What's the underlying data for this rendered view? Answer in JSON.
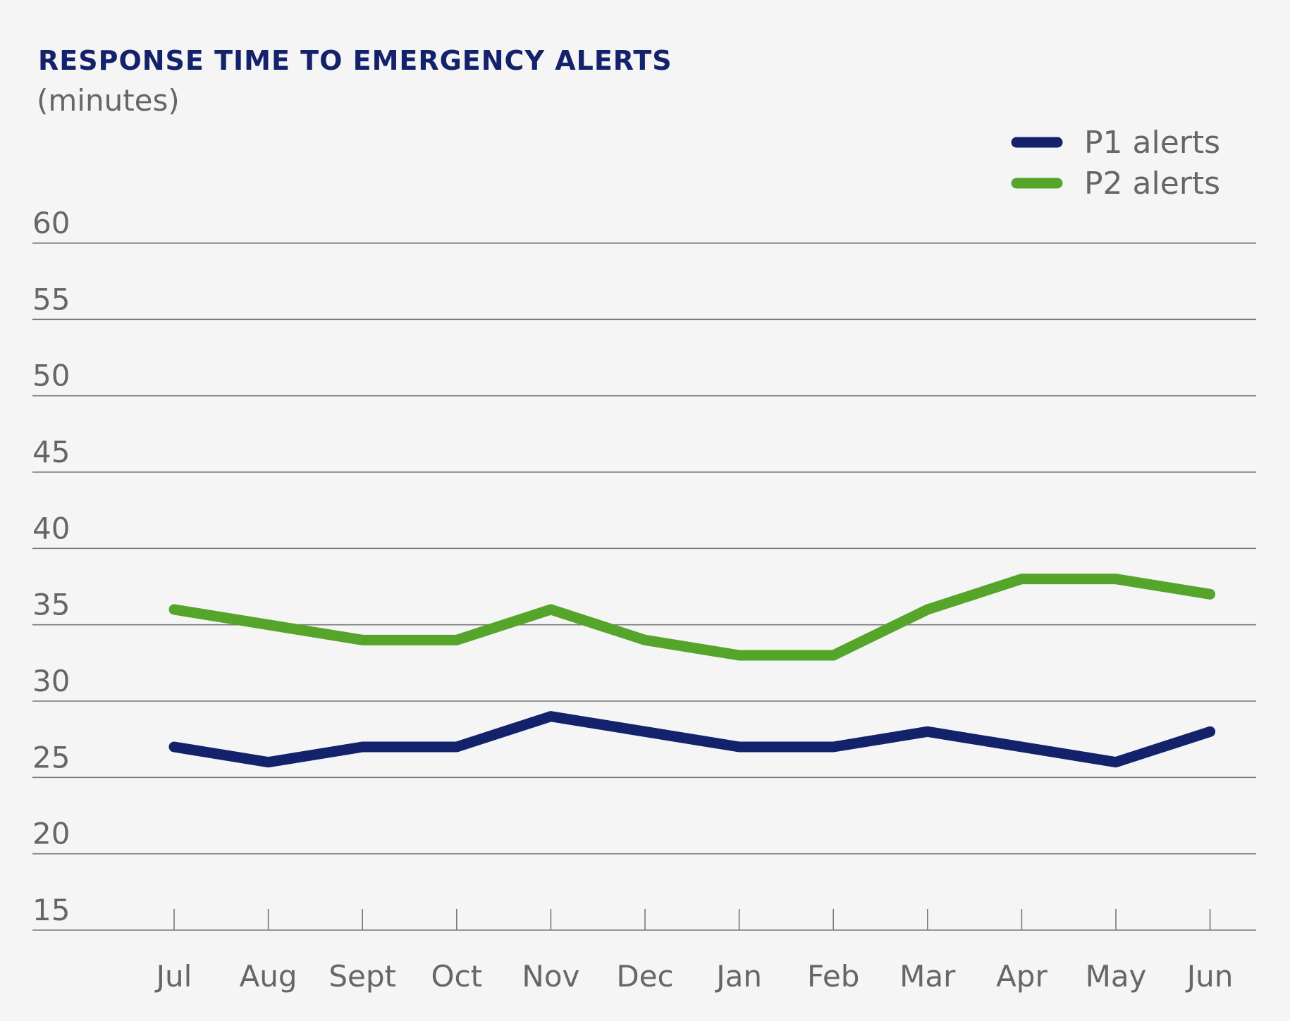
{
  "colors": {
    "background": "#f5f5f5",
    "title": "#13226b",
    "text_gray": "#666666",
    "gridline": "#777777",
    "p1": "#13226b",
    "p2": "#55a52b"
  },
  "chart_data": {
    "type": "line",
    "title": "RESPONSE TIME TO EMERGENCY ALERTS",
    "subtitle": "(minutes)",
    "xlabel": "",
    "ylabel": "",
    "categories": [
      "Jul",
      "Aug",
      "Sept",
      "Oct",
      "Nov",
      "Dec",
      "Jan",
      "Feb",
      "Mar",
      "Apr",
      "May",
      "Jun"
    ],
    "y_ticks": [
      60,
      55,
      50,
      45,
      40,
      35,
      30,
      25,
      20,
      15
    ],
    "ylim": [
      15,
      60
    ],
    "grid": true,
    "legend_position": "top-right",
    "series": [
      {
        "name": "P1 alerts",
        "color": "#13226b",
        "values": [
          27,
          26,
          27,
          27,
          29,
          28,
          27,
          27,
          28,
          27,
          26,
          28
        ]
      },
      {
        "name": "P2 alerts",
        "color": "#55a52b",
        "values": [
          36,
          35,
          34,
          34,
          36,
          34,
          33,
          33,
          36,
          38,
          38,
          37
        ]
      }
    ]
  }
}
